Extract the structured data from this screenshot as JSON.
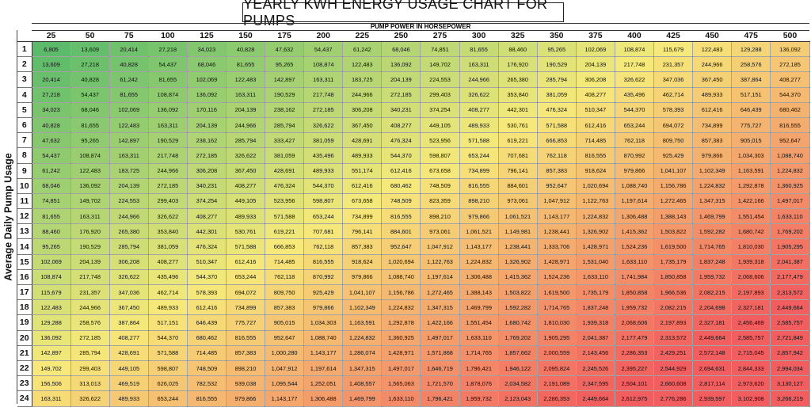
{
  "title": "YEARLY KWH ENERGY USAGE CHART FOR PUMPS",
  "column_header": "PUMP POWER IN HORSEPOWER",
  "row_header": "Average Daily Pump Usage",
  "horsepower": [
    25,
    50,
    75,
    100,
    125,
    150,
    175,
    200,
    225,
    250,
    275,
    300,
    325,
    350,
    375,
    400,
    425,
    450,
    475,
    500
  ],
  "hours": [
    1,
    2,
    3,
    4,
    5,
    6,
    7,
    8,
    9,
    10,
    11,
    12,
    13,
    14,
    15,
    16,
    17,
    18,
    19,
    20,
    21,
    22,
    23,
    24
  ],
  "rows": [
    [
      "6,805",
      "13,609",
      "20,414",
      "27,218",
      "34,023",
      "40,828",
      "47,632",
      "54,437",
      "61,242",
      "68,046",
      "74,851",
      "81,655",
      "88,460",
      "95,265",
      "102,069",
      "108,874",
      "115,679",
      "122,483",
      "129,288",
      "136,092"
    ],
    [
      "13,609",
      "27,218",
      "40,828",
      "54,437",
      "68,046",
      "81,655",
      "95,265",
      "108,874",
      "122,483",
      "136,092",
      "149,702",
      "163,311",
      "176,920",
      "190,529",
      "204,139",
      "217,748",
      "231,357",
      "244,966",
      "258,576",
      "272,185"
    ],
    [
      "20,414",
      "40,828",
      "61,242",
      "81,655",
      "102,069",
      "122,483",
      "142,897",
      "163,311",
      "183,725",
      "204,139",
      "224,553",
      "244,966",
      "265,380",
      "285,794",
      "306,208",
      "326,622",
      "347,036",
      "367,450",
      "387,864",
      "408,277"
    ],
    [
      "27,218",
      "54,437",
      "81,655",
      "108,874",
      "136,092",
      "163,311",
      "190,529",
      "217,748",
      "244,966",
      "272,185",
      "299,403",
      "326,622",
      "353,840",
      "381,059",
      "408,277",
      "435,496",
      "462,714",
      "489,933",
      "517,151",
      "544,370"
    ],
    [
      "34,023",
      "68,046",
      "102,069",
      "136,092",
      "170,116",
      "204,139",
      "238,162",
      "272,185",
      "306,208",
      "340,231",
      "374,254",
      "408,277",
      "442,301",
      "476,324",
      "510,347",
      "544,370",
      "578,393",
      "612,416",
      "646,439",
      "680,462"
    ],
    [
      "40,828",
      "81,655",
      "122,483",
      "163,311",
      "204,139",
      "244,966",
      "285,794",
      "326,622",
      "367,450",
      "408,277",
      "449,105",
      "489,933",
      "530,761",
      "571,588",
      "612,416",
      "653,244",
      "694,072",
      "734,899",
      "775,727",
      "816,555"
    ],
    [
      "47,632",
      "95,265",
      "142,897",
      "190,529",
      "238,162",
      "285,794",
      "333,427",
      "381,059",
      "428,691",
      "476,324",
      "523,956",
      "571,588",
      "619,221",
      "666,853",
      "714,485",
      "762,118",
      "809,750",
      "857,383",
      "905,015",
      "952,647"
    ],
    [
      "54,437",
      "108,874",
      "163,311",
      "217,748",
      "272,185",
      "326,622",
      "381,059",
      "435,496",
      "489,933",
      "544,370",
      "598,807",
      "653,244",
      "707,681",
      "762,118",
      "816,555",
      "870,992",
      "925,429",
      "979,866",
      "1,034,303",
      "1,088,740"
    ],
    [
      "61,242",
      "122,483",
      "183,725",
      "244,966",
      "306,208",
      "367,450",
      "428,691",
      "489,933",
      "551,174",
      "612,416",
      "673,658",
      "734,899",
      "796,141",
      "857,383",
      "918,624",
      "979,866",
      "1,041,107",
      "1,102,349",
      "1,163,591",
      "1,224,832"
    ],
    [
      "68,046",
      "136,092",
      "204,139",
      "272,185",
      "340,231",
      "408,277",
      "476,324",
      "544,370",
      "612,416",
      "680,462",
      "748,509",
      "816,555",
      "884,601",
      "952,647",
      "1,020,694",
      "1,088,740",
      "1,156,786",
      "1,224,832",
      "1,292,878",
      "1,360,925"
    ],
    [
      "74,851",
      "149,702",
      "224,553",
      "299,403",
      "374,254",
      "449,105",
      "523,956",
      "598,807",
      "673,658",
      "748,509",
      "823,359",
      "898,210",
      "973,061",
      "1,047,912",
      "1,122,763",
      "1,197,614",
      "1,272,465",
      "1,347,315",
      "1,422,166",
      "1,497,017"
    ],
    [
      "81,655",
      "163,311",
      "244,966",
      "326,622",
      "408,277",
      "489,933",
      "571,588",
      "653,244",
      "734,899",
      "816,555",
      "898,210",
      "979,866",
      "1,061,521",
      "1,143,177",
      "1,224,832",
      "1,306,488",
      "1,388,143",
      "1,469,799",
      "1,551,454",
      "1,633,110"
    ],
    [
      "88,460",
      "176,920",
      "265,380",
      "353,840",
      "442,301",
      "530,761",
      "619,221",
      "707,681",
      "796,141",
      "884,601",
      "973,061",
      "1,061,521",
      "1,149,981",
      "1,238,441",
      "1,326,902",
      "1,415,362",
      "1,503,822",
      "1,592,282",
      "1,680,742",
      "1,769,202"
    ],
    [
      "95,265",
      "190,529",
      "285,794",
      "381,059",
      "476,324",
      "571,588",
      "666,853",
      "762,118",
      "857,383",
      "952,647",
      "1,047,912",
      "1,143,177",
      "1,238,441",
      "1,333,706",
      "1,428,971",
      "1,524,236",
      "1,619,500",
      "1,714,765",
      "1,810,030",
      "1,905,295"
    ],
    [
      "102,069",
      "204,139",
      "306,208",
      "408,277",
      "510,347",
      "612,416",
      "714,485",
      "816,555",
      "918,624",
      "1,020,694",
      "1,122,763",
      "1,224,832",
      "1,326,902",
      "1,428,971",
      "1,531,040",
      "1,633,110",
      "1,735,179",
      "1,837,248",
      "1,939,318",
      "2,041,387"
    ],
    [
      "108,874",
      "217,748",
      "326,622",
      "435,496",
      "544,370",
      "653,244",
      "762,118",
      "870,992",
      "979,866",
      "1,088,740",
      "1,197,614",
      "1,306,488",
      "1,415,362",
      "1,524,236",
      "1,633,110",
      "1,741,984",
      "1,850,858",
      "1,959,732",
      "2,068,606",
      "2,177,479"
    ],
    [
      "115,679",
      "231,357",
      "347,036",
      "462,714",
      "578,393",
      "694,072",
      "809,750",
      "925,429",
      "1,041,107",
      "1,156,786",
      "1,272,465",
      "1,388,143",
      "1,503,822",
      "1,619,500",
      "1,735,179",
      "1,850,858",
      "1,966,536",
      "2,082,215",
      "2,197,893",
      "2,313,572"
    ],
    [
      "122,483",
      "244,966",
      "367,450",
      "489,933",
      "612,416",
      "734,899",
      "857,383",
      "979,866",
      "1,102,349",
      "1,224,832",
      "1,347,315",
      "1,469,799",
      "1,592,282",
      "1,714,765",
      "1,837,248",
      "1,959,732",
      "2,082,215",
      "2,204,698",
      "2,327,181",
      "2,449,664"
    ],
    [
      "129,288",
      "258,576",
      "387,864",
      "517,151",
      "646,439",
      "775,727",
      "905,015",
      "1,034,303",
      "1,163,591",
      "1,292,878",
      "1,422,166",
      "1,551,454",
      "1,680,742",
      "1,810,030",
      "1,939,318",
      "2,068,606",
      "2,197,893",
      "2,327,181",
      "2,456,469",
      "2,585,757"
    ],
    [
      "136,092",
      "272,185",
      "408,277",
      "544,370",
      "680,462",
      "816,555",
      "952,647",
      "1,088,740",
      "1,224,832",
      "1,360,925",
      "1,497,017",
      "1,633,110",
      "1,769,202",
      "1,905,295",
      "2,041,387",
      "2,177,479",
      "2,313,572",
      "2,449,664",
      "2,585,757",
      "2,721,849"
    ],
    [
      "142,897",
      "285,794",
      "428,691",
      "571,588",
      "714,485",
      "857,383",
      "1,000,280",
      "1,143,177",
      "1,286,074",
      "1,428,971",
      "1,571,868",
      "1,714,765",
      "1,857,662",
      "2,000,559",
      "2,143,456",
      "2,286,353",
      "2,429,251",
      "2,572,148",
      "2,715,045",
      "2,857,942"
    ],
    [
      "149,702",
      "299,403",
      "449,105",
      "598,807",
      "748,509",
      "898,210",
      "1,047,912",
      "1,197,614",
      "1,347,315",
      "1,497,017",
      "1,646,719",
      "1,796,421",
      "1,946,122",
      "2,095,824",
      "2,245,526",
      "2,395,227",
      "2,544,929",
      "2,694,631",
      "2,844,333",
      "2,994,034"
    ],
    [
      "156,506",
      "313,013",
      "469,519",
      "626,025",
      "782,532",
      "939,038",
      "1,095,544",
      "1,252,051",
      "1,408,557",
      "1,565,063",
      "1,721,570",
      "1,878,076",
      "2,034,582",
      "2,191,089",
      "2,347,595",
      "2,504,101",
      "2,660,608",
      "2,817,114",
      "2,973,620",
      "3,130,127"
    ],
    [
      "163,311",
      "326,622",
      "489,933",
      "653,244",
      "816,555",
      "979,866",
      "1,143,177",
      "1,306,488",
      "1,469,799",
      "1,633,110",
      "1,796,421",
      "1,959,732",
      "2,123,043",
      "2,286,353",
      "2,449,664",
      "2,612,975",
      "2,776,286",
      "2,939,597",
      "3,102,908",
      "3,266,219"
    ]
  ],
  "colors": {
    "low": "#5bbb6a",
    "mid": "#f6e97a",
    "high": "#f25d5f"
  }
}
